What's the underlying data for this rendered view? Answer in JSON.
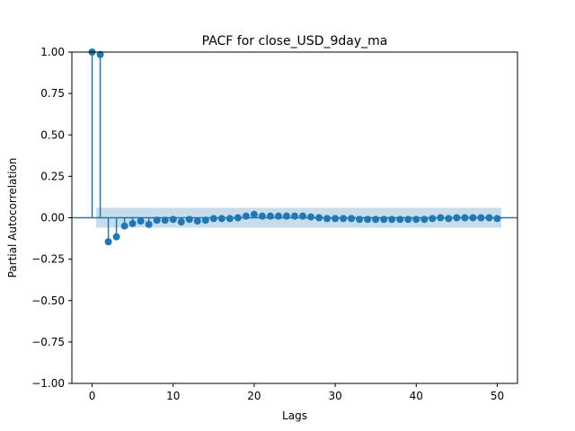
{
  "chart_data": {
    "type": "stem",
    "title": "PACF for close_USD_9day_ma",
    "xlabel": "Lags",
    "ylabel": "Partial Autocorrelation",
    "xlim": [
      -2.5,
      52.5
    ],
    "ylim": [
      -1.0,
      1.0
    ],
    "xticks": [
      0,
      10,
      20,
      30,
      40,
      50
    ],
    "xtick_labels": [
      "0",
      "10",
      "20",
      "30",
      "40",
      "50"
    ],
    "yticks": [
      -1.0,
      -0.75,
      -0.5,
      -0.25,
      0.0,
      0.25,
      0.5,
      0.75,
      1.0
    ],
    "ytick_labels": [
      "−1.00",
      "−0.75",
      "−0.50",
      "−0.25",
      "0.00",
      "0.25",
      "0.50",
      "0.75",
      "1.00"
    ],
    "grid": false,
    "colors": {
      "series": "#1f77b4",
      "confidence_band": "#1f77b4"
    },
    "confidence_interval": {
      "lower": -0.06,
      "upper": 0.06,
      "from_lag": 0.5,
      "to_lag": 50.5
    },
    "lags": [
      0,
      1,
      2,
      3,
      4,
      5,
      6,
      7,
      8,
      9,
      10,
      11,
      12,
      13,
      14,
      15,
      16,
      17,
      18,
      19,
      20,
      21,
      22,
      23,
      24,
      25,
      26,
      27,
      28,
      29,
      30,
      31,
      32,
      33,
      34,
      35,
      36,
      37,
      38,
      39,
      40,
      41,
      42,
      43,
      44,
      45,
      46,
      47,
      48,
      49,
      50
    ],
    "values": [
      1.0,
      0.985,
      -0.145,
      -0.115,
      -0.05,
      -0.035,
      -0.02,
      -0.04,
      -0.015,
      -0.015,
      -0.01,
      -0.025,
      -0.01,
      -0.02,
      -0.015,
      -0.005,
      -0.005,
      -0.005,
      0.0,
      0.01,
      0.02,
      0.01,
      0.01,
      0.01,
      0.01,
      0.01,
      0.01,
      0.005,
      0.0,
      -0.005,
      -0.005,
      -0.005,
      -0.005,
      -0.01,
      -0.01,
      -0.01,
      -0.01,
      -0.01,
      -0.01,
      -0.01,
      -0.01,
      -0.01,
      -0.005,
      0.0,
      -0.005,
      0.0,
      0.0,
      0.0,
      0.0,
      0.0,
      -0.005
    ]
  }
}
